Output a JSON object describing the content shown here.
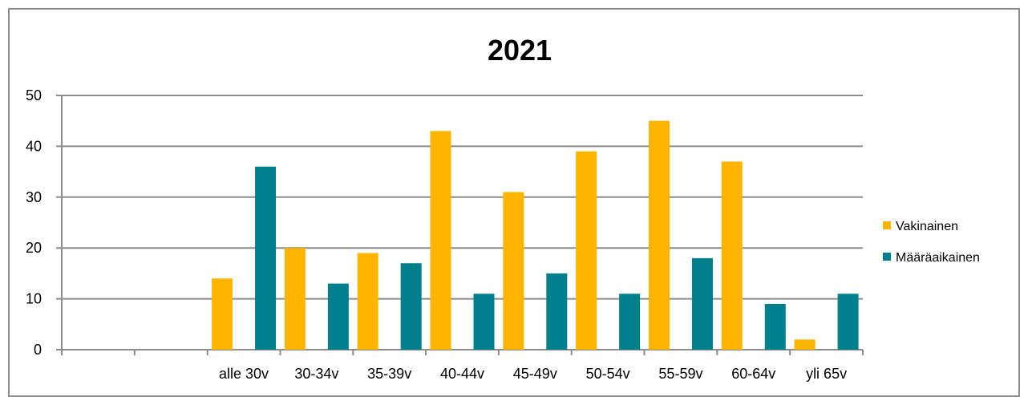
{
  "chart_data": {
    "type": "bar",
    "title": "2021",
    "xlabel": "",
    "ylabel": "",
    "categories": [
      "",
      "",
      "alle 30v",
      "30-34v",
      "35-39v",
      "40-44v",
      "45-49v",
      "50-54v",
      "55-59v",
      "60-64v",
      "yli 65v"
    ],
    "series": [
      {
        "name": "Vakinainen",
        "color": "#FFB400",
        "values": [
          null,
          null,
          14,
          20,
          19,
          43,
          31,
          39,
          45,
          37,
          2
        ]
      },
      {
        "name": "Määräaikainen",
        "color": "#00808C",
        "values": [
          null,
          null,
          36,
          13,
          17,
          11,
          15,
          11,
          18,
          9,
          11
        ]
      }
    ],
    "ylim": [
      0,
      50
    ],
    "yticks": [
      0,
      10,
      20,
      30,
      40,
      50
    ],
    "grid": true,
    "legend_position": "right"
  }
}
